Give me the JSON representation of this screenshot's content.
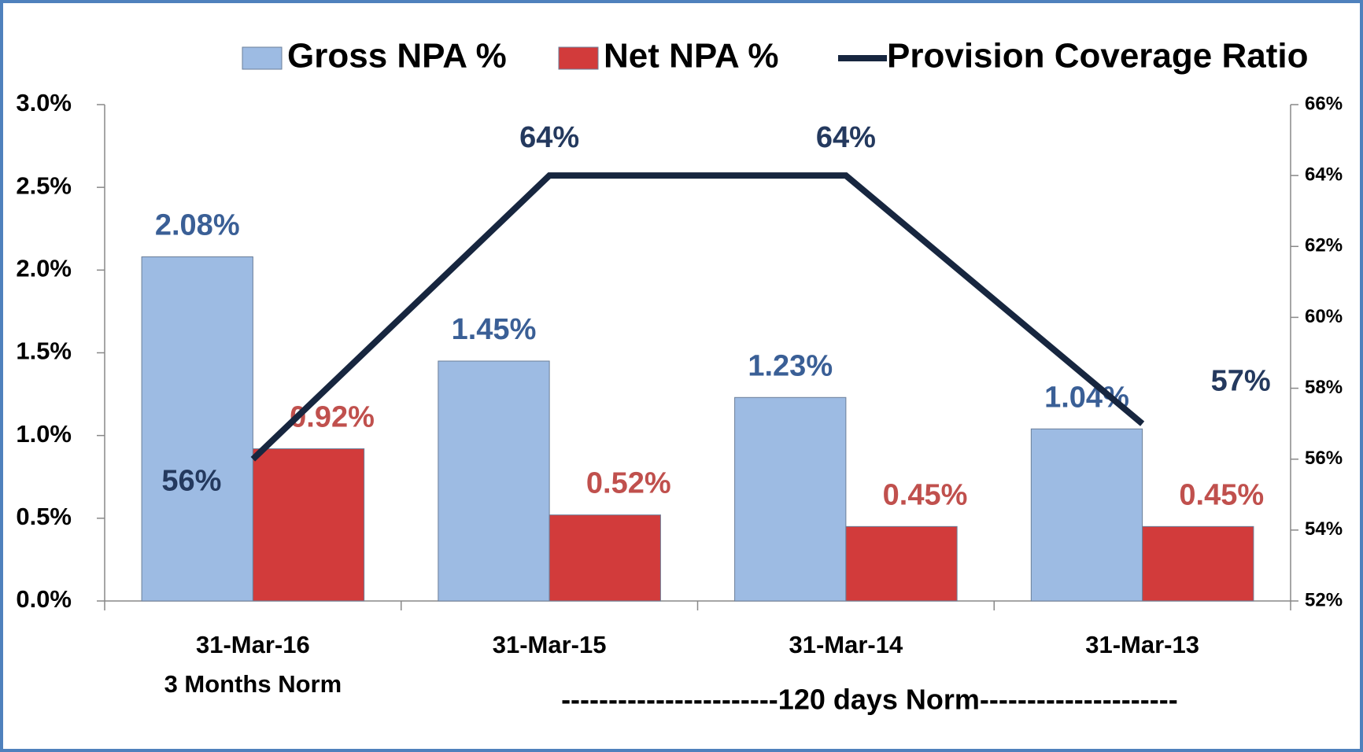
{
  "chart_data": {
    "type": "bar-line",
    "categories": [
      "31-Mar-16",
      "31-Mar-15",
      "31-Mar-14",
      "31-Mar-13"
    ],
    "annotations": [
      "3 Months Norm",
      "-----------------------120 days Norm---------------------"
    ],
    "series": [
      {
        "name": "Gross NPA %",
        "color": "#9dbbe3",
        "label_color": "#3a5f96",
        "values": [
          2.08,
          1.45,
          1.23,
          1.04
        ],
        "value_labels": [
          "2.08%",
          "1.45%",
          "1.23%",
          "1.04%"
        ]
      },
      {
        "name": "Net NPA %",
        "color": "#d23b3b",
        "label_color": "#c0504d",
        "values": [
          0.92,
          0.52,
          0.45,
          0.45
        ],
        "value_labels": [
          "0.92%",
          "0.52%",
          "0.45%",
          "0.45%"
        ]
      },
      {
        "name": "Provision Coverage Ratio",
        "type": "line",
        "axis": "y2",
        "color": "#17263f",
        "label_color": "#24395e",
        "values": [
          56,
          64,
          64,
          57
        ],
        "value_labels": [
          "56%",
          "64%",
          "64%",
          "57%"
        ]
      }
    ],
    "ylim": [
      0,
      3
    ],
    "yticks": [
      {
        "value": 0,
        "label": "0.0%"
      },
      {
        "value": 0.5,
        "label": "0.5%"
      },
      {
        "value": 1,
        "label": "1.0%"
      },
      {
        "value": 1.5,
        "label": "1.5%"
      },
      {
        "value": 2,
        "label": "2.0%"
      },
      {
        "value": 2.5,
        "label": "2.5%"
      },
      {
        "value": 3,
        "label": "3.0%"
      }
    ],
    "y2lim": [
      52,
      66
    ],
    "y2ticks": [
      {
        "value": 52,
        "label": "52%"
      },
      {
        "value": 54,
        "label": "54%"
      },
      {
        "value": 56,
        "label": "56%"
      },
      {
        "value": 58,
        "label": "58%"
      },
      {
        "value": 60,
        "label": "60%"
      },
      {
        "value": 62,
        "label": "62%"
      },
      {
        "value": 64,
        "label": "64%"
      },
      {
        "value": 66,
        "label": "66%"
      }
    ]
  }
}
